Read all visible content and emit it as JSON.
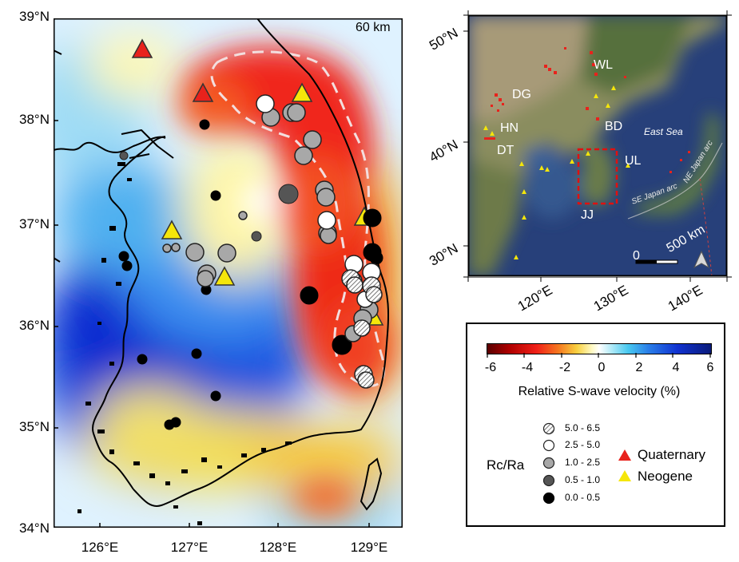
{
  "main_map": {
    "depth_label": "60 km",
    "lat_labels": [
      "39°N",
      "38°N",
      "37°N",
      "36°N",
      "35°N",
      "34°N"
    ],
    "lon_labels": [
      "126°E",
      "127°E",
      "128°E",
      "129°E"
    ]
  },
  "inset_map": {
    "lat_labels": [
      "50°N",
      "40°N",
      "30°N"
    ],
    "lon_labels": [
      "120°E",
      "130°E",
      "140°E"
    ],
    "region_labels": [
      "WL",
      "DG",
      "HN",
      "DT",
      "BD",
      "UL",
      "JJ"
    ],
    "sea_label": "East Sea",
    "arc_labels": [
      "SE Japan arc",
      "NE Japan arc"
    ],
    "scale_zero": "0",
    "scale_label": "500 km",
    "north_icon": "north-arrow-icon"
  },
  "colorbar": {
    "ticks": [
      "-6",
      "-4",
      "-2",
      "0",
      "2",
      "4",
      "6"
    ],
    "label": "Relative S-wave velocity (%)"
  },
  "ratio_legend": {
    "label": "Rc/Ra",
    "classes": [
      {
        "range": "5.0 - 6.5",
        "style": "hatched"
      },
      {
        "range": "2.5 - 5.0",
        "style": "white"
      },
      {
        "range": "1.0 - 2.5",
        "style": "lightgray"
      },
      {
        "range": "0.5 - 1.0",
        "style": "darkgray"
      },
      {
        "range": "0.0 - 0.5",
        "style": "black"
      }
    ]
  },
  "volcano_legend": [
    {
      "label": "Quaternary",
      "color": "#e8221c"
    },
    {
      "label": "Neogene",
      "color": "#f5e60a"
    }
  ]
}
